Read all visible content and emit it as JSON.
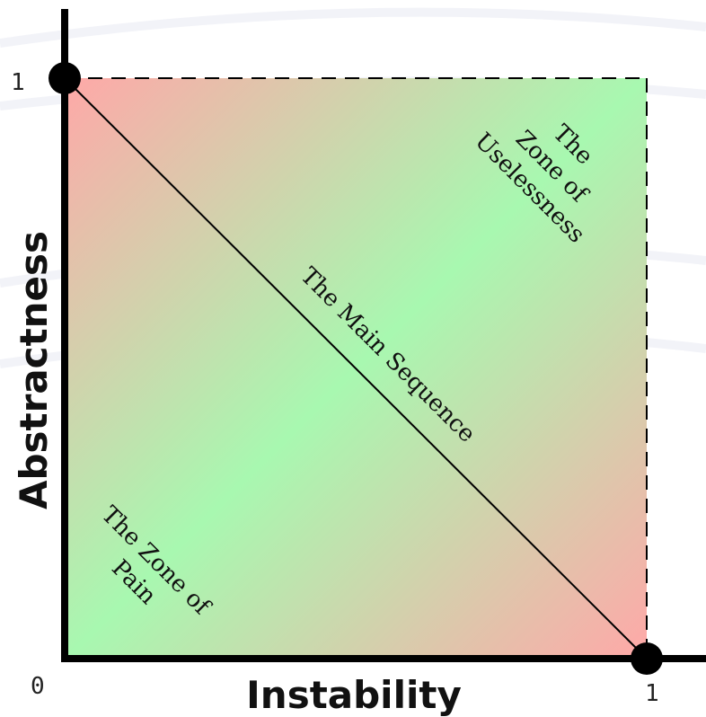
{
  "diagram": {
    "x_axis_title": "Instability",
    "y_axis_title": "Abstractness",
    "origin_label": "0",
    "x_max_label": "1",
    "y_max_label": "1",
    "main_sequence_label": "The Main Sequence",
    "zone_of_uselessness": [
      "The",
      "Zone of",
      "Uselessness"
    ],
    "zone_of_pain": [
      "The Zone of",
      "Pain"
    ],
    "colors": {
      "zone": "#ffa8a8",
      "sequence": "#a8f8b0",
      "axis": "#000000",
      "background_curve": "#f2f3f8"
    }
  }
}
